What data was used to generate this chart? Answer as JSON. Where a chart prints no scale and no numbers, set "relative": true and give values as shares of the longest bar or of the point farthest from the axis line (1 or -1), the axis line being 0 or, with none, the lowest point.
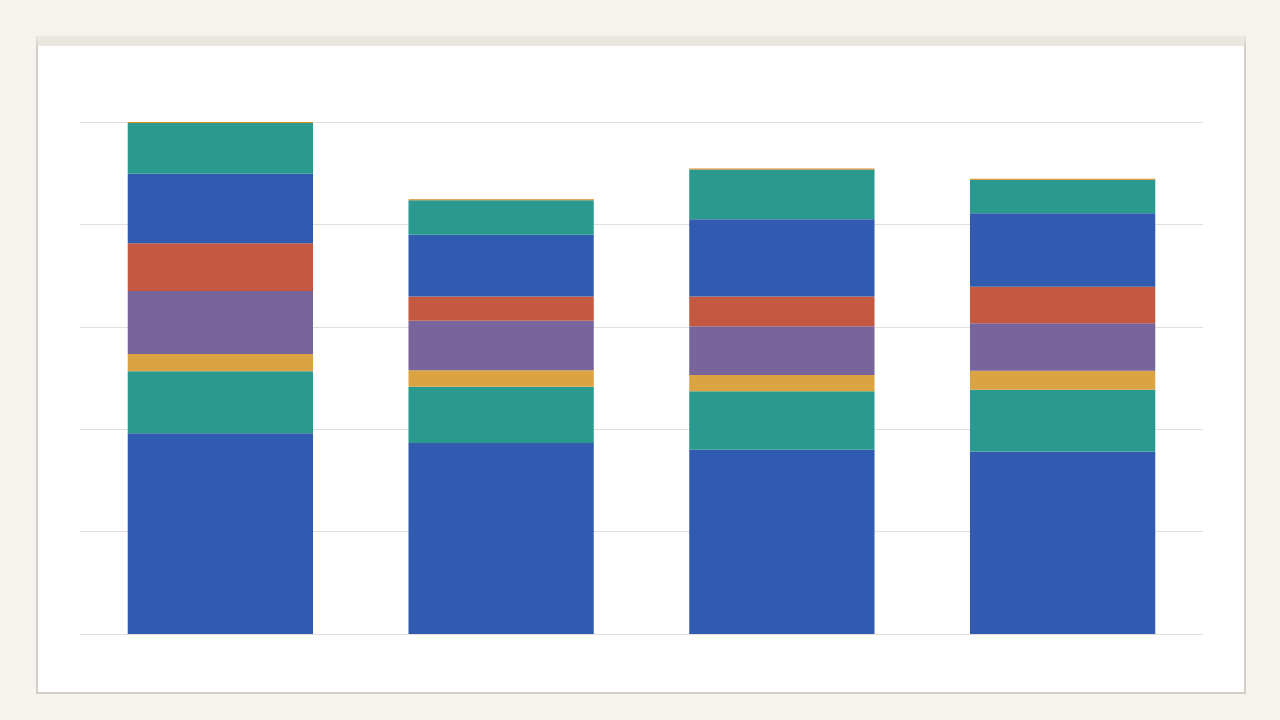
{
  "chart_data": {
    "type": "bar",
    "relative": true,
    "stacked": true,
    "grid": "y",
    "categories": [
      null,
      null,
      null,
      null
    ],
    "series": [
      {
        "color": "#305bb0",
        "values": [
          0.392,
          0.373,
          0.36,
          0.356
        ]
      },
      {
        "color": "#2a9a90",
        "values": [
          0.121,
          0.11,
          0.114,
          0.121
        ]
      },
      {
        "color": "#d9a441",
        "values": [
          0.034,
          0.032,
          0.032,
          0.037
        ]
      },
      {
        "color": "#77659b",
        "values": [
          0.123,
          0.097,
          0.095,
          0.093
        ]
      },
      {
        "color": "#c45840",
        "values": [
          0.093,
          0.047,
          0.058,
          0.071
        ]
      },
      {
        "color": "#305bb0",
        "values": [
          0.136,
          0.121,
          0.151,
          0.144
        ]
      },
      {
        "color": "#2a9a90",
        "values": [
          0.099,
          0.067,
          0.097,
          0.065
        ]
      },
      {
        "color": "#e08a1e",
        "values": [
          0.002,
          0.002,
          0.002,
          0.002
        ]
      }
    ]
  }
}
